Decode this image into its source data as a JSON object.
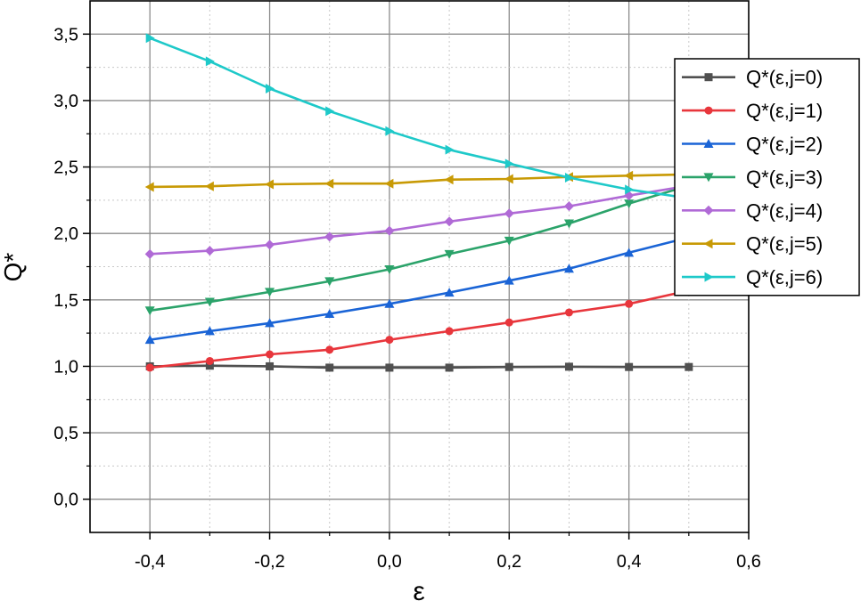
{
  "chart_data": {
    "type": "line",
    "title": "",
    "xlabel": "ε",
    "ylabel": "Q*",
    "xlim": [
      -0.5,
      0.6
    ],
    "ylim": [
      -0.25,
      3.75
    ],
    "xticks": [
      -0.4,
      -0.2,
      0.0,
      0.2,
      0.4,
      0.6
    ],
    "xtick_labels": [
      "-0,4",
      "-0,2",
      "0,0",
      "0,2",
      "0,4",
      "0,6"
    ],
    "yticks": [
      0.0,
      0.5,
      1.0,
      1.5,
      2.0,
      2.5,
      3.0,
      3.5
    ],
    "ytick_labels": [
      "0,0",
      "0,5",
      "1,0",
      "1,5",
      "2,0",
      "2,5",
      "3,0",
      "3,5"
    ],
    "grid": true,
    "legend_position": "right",
    "x": [
      -0.4,
      -0.3,
      -0.2,
      -0.1,
      0.0,
      0.1,
      0.2,
      0.3,
      0.4,
      0.5
    ],
    "series": [
      {
        "name": "Q*(ε,j=0)",
        "color": "#505050",
        "marker": "square",
        "values": [
          1.0,
          1.005,
          1.0,
          0.99,
          0.99,
          0.99,
          0.995,
          0.997,
          0.995,
          0.995
        ]
      },
      {
        "name": "Q*(ε,j=1)",
        "color": "#e8363c",
        "marker": "circle",
        "values": [
          0.99,
          1.04,
          1.09,
          1.125,
          1.2,
          1.265,
          1.33,
          1.405,
          1.47,
          1.57
        ]
      },
      {
        "name": "Q*(ε,j=2)",
        "color": "#1a64d6",
        "marker": "triangle-up",
        "values": [
          1.2,
          1.265,
          1.325,
          1.395,
          1.47,
          1.555,
          1.645,
          1.735,
          1.855,
          1.97
        ]
      },
      {
        "name": "Q*(ε,j=3)",
        "color": "#2ba36a",
        "marker": "triangle-down",
        "values": [
          1.42,
          1.485,
          1.56,
          1.64,
          1.73,
          1.845,
          1.945,
          2.075,
          2.225,
          2.36
        ]
      },
      {
        "name": "Q*(ε,j=4)",
        "color": "#b06ad6",
        "marker": "diamond",
        "values": [
          1.845,
          1.87,
          1.915,
          1.975,
          2.02,
          2.09,
          2.15,
          2.205,
          2.285,
          2.36
        ]
      },
      {
        "name": "Q*(ε,j=5)",
        "color": "#c89a05",
        "marker": "triangle-left",
        "values": [
          2.35,
          2.355,
          2.37,
          2.375,
          2.375,
          2.405,
          2.41,
          2.425,
          2.435,
          2.445
        ]
      },
      {
        "name": "Q*(ε,j=6)",
        "color": "#1ec9c9",
        "marker": "triangle-right",
        "values": [
          3.47,
          3.295,
          3.09,
          2.92,
          2.77,
          2.63,
          2.525,
          2.42,
          2.33,
          2.265
        ]
      }
    ]
  }
}
